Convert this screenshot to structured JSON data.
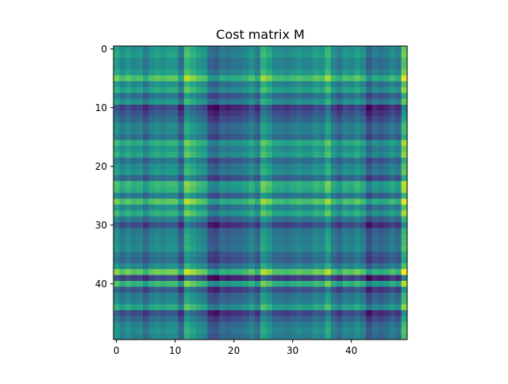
{
  "chart_data": {
    "type": "heatmap",
    "title": "Cost matrix M",
    "xlabel": "",
    "ylabel": "",
    "colormap": "viridis",
    "shape": [
      50,
      50
    ],
    "xlim": [
      -0.5,
      49.5
    ],
    "ylim": [
      49.5,
      -0.5
    ],
    "x_ticks": [
      "0",
      "10",
      "20",
      "30",
      "40"
    ],
    "y_ticks": [
      "0",
      "10",
      "20",
      "30",
      "40"
    ],
    "grid": false,
    "legend": "none",
    "row_levels": [
      0.5,
      0.55,
      0.45,
      0.45,
      0.55,
      0.8,
      0.45,
      0.6,
      0.3,
      0.5,
      0.05,
      0.15,
      0.25,
      0.4,
      0.4,
      0.3,
      0.65,
      0.5,
      0.6,
      0.3,
      0.45,
      0.5,
      0.25,
      0.7,
      0.65,
      0.35,
      0.8,
      0.45,
      0.65,
      0.35,
      0.1,
      0.35,
      0.4,
      0.4,
      0.45,
      0.3,
      0.25,
      0.45,
      0.85,
      0.05,
      0.7,
      0.15,
      0.35,
      0.4,
      0.6,
      0.1,
      0.25,
      0.4,
      0.45,
      0.4
    ],
    "column_levels": [
      0.6,
      0.45,
      0.55,
      0.45,
      0.5,
      0.35,
      0.5,
      0.55,
      0.5,
      0.55,
      0.55,
      0.3,
      0.75,
      0.65,
      0.55,
      0.5,
      0.25,
      0.2,
      0.35,
      0.3,
      0.35,
      0.35,
      0.4,
      0.5,
      0.35,
      0.7,
      0.6,
      0.45,
      0.45,
      0.4,
      0.45,
      0.5,
      0.45,
      0.45,
      0.55,
      0.5,
      0.7,
      0.45,
      0.35,
      0.5,
      0.45,
      0.55,
      0.45,
      0.2,
      0.35,
      0.3,
      0.35,
      0.45,
      0.35,
      0.85
    ]
  }
}
